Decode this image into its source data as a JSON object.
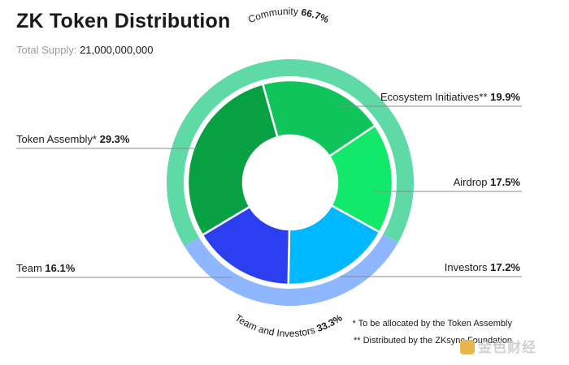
{
  "header": {
    "title": "ZK Token Distribution",
    "supply_label": "Total Supply:",
    "supply_value": "21,000,000,000"
  },
  "chart_data": {
    "type": "pie",
    "style": "nested-donut",
    "title": "ZK Token Distribution",
    "groups": [
      {
        "name": "Community",
        "value": 66.7,
        "label": "66.7%",
        "color": "#5fd9a6"
      },
      {
        "name": "Team and Investors",
        "value": 33.3,
        "label": "33.3%",
        "color": "#8fb7ff"
      }
    ],
    "slices": [
      {
        "name": "Ecosystem Initiatives**",
        "value": 19.9,
        "label": "19.9%",
        "group": "Community",
        "color": "#0ec45b",
        "side": "right"
      },
      {
        "name": "Airdrop",
        "value": 17.5,
        "label": "17.5%",
        "group": "Community",
        "color": "#12e86a",
        "side": "right"
      },
      {
        "name": "Investors",
        "value": 17.2,
        "label": "17.2%",
        "group": "Team and Investors",
        "color": "#00b8ff",
        "side": "right"
      },
      {
        "name": "Team",
        "value": 16.1,
        "label": "16.1%",
        "group": "Team and Investors",
        "color": "#2b3ff0",
        "side": "left"
      },
      {
        "name": "Token Assembly*",
        "value": 29.3,
        "label": "29.3%",
        "group": "Community",
        "color": "#07a043",
        "side": "left"
      }
    ],
    "legend": "callout-lines"
  },
  "footnotes": {
    "note1": "* To be allocated by the Token Assembly",
    "note2": "** Distributed by the ZKsync Foundation"
  },
  "watermark": {
    "text": "金色财经",
    "icon": "logo-icon"
  }
}
